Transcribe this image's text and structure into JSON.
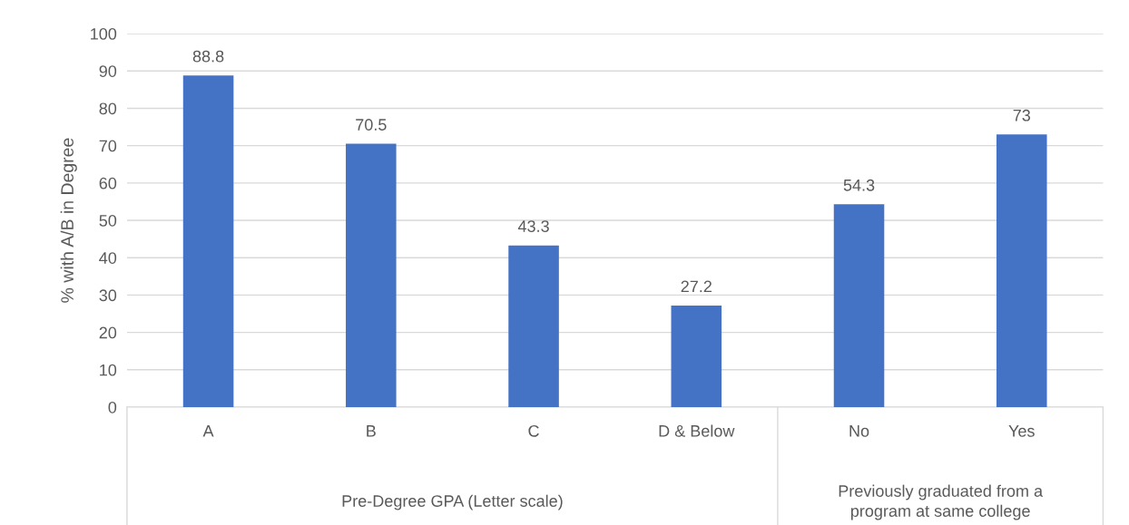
{
  "chart_data": {
    "type": "bar",
    "ylabel": "% with A/B in Degree",
    "categories": [
      "A",
      "B",
      "C",
      "D & Below",
      "No",
      "Yes"
    ],
    "values": [
      88.8,
      70.5,
      43.3,
      27.2,
      54.3,
      73
    ],
    "color": "#4472c4",
    "ylim": [
      0,
      100
    ],
    "yticks": [
      0,
      10,
      20,
      30,
      40,
      50,
      60,
      70,
      80,
      90,
      100
    ],
    "grid": "y",
    "data_labels": true,
    "legend": false,
    "annotations": [
      "Pre-Degree GPA (Letter scale)",
      "Previously graduated from a\nprogram at same college"
    ]
  }
}
